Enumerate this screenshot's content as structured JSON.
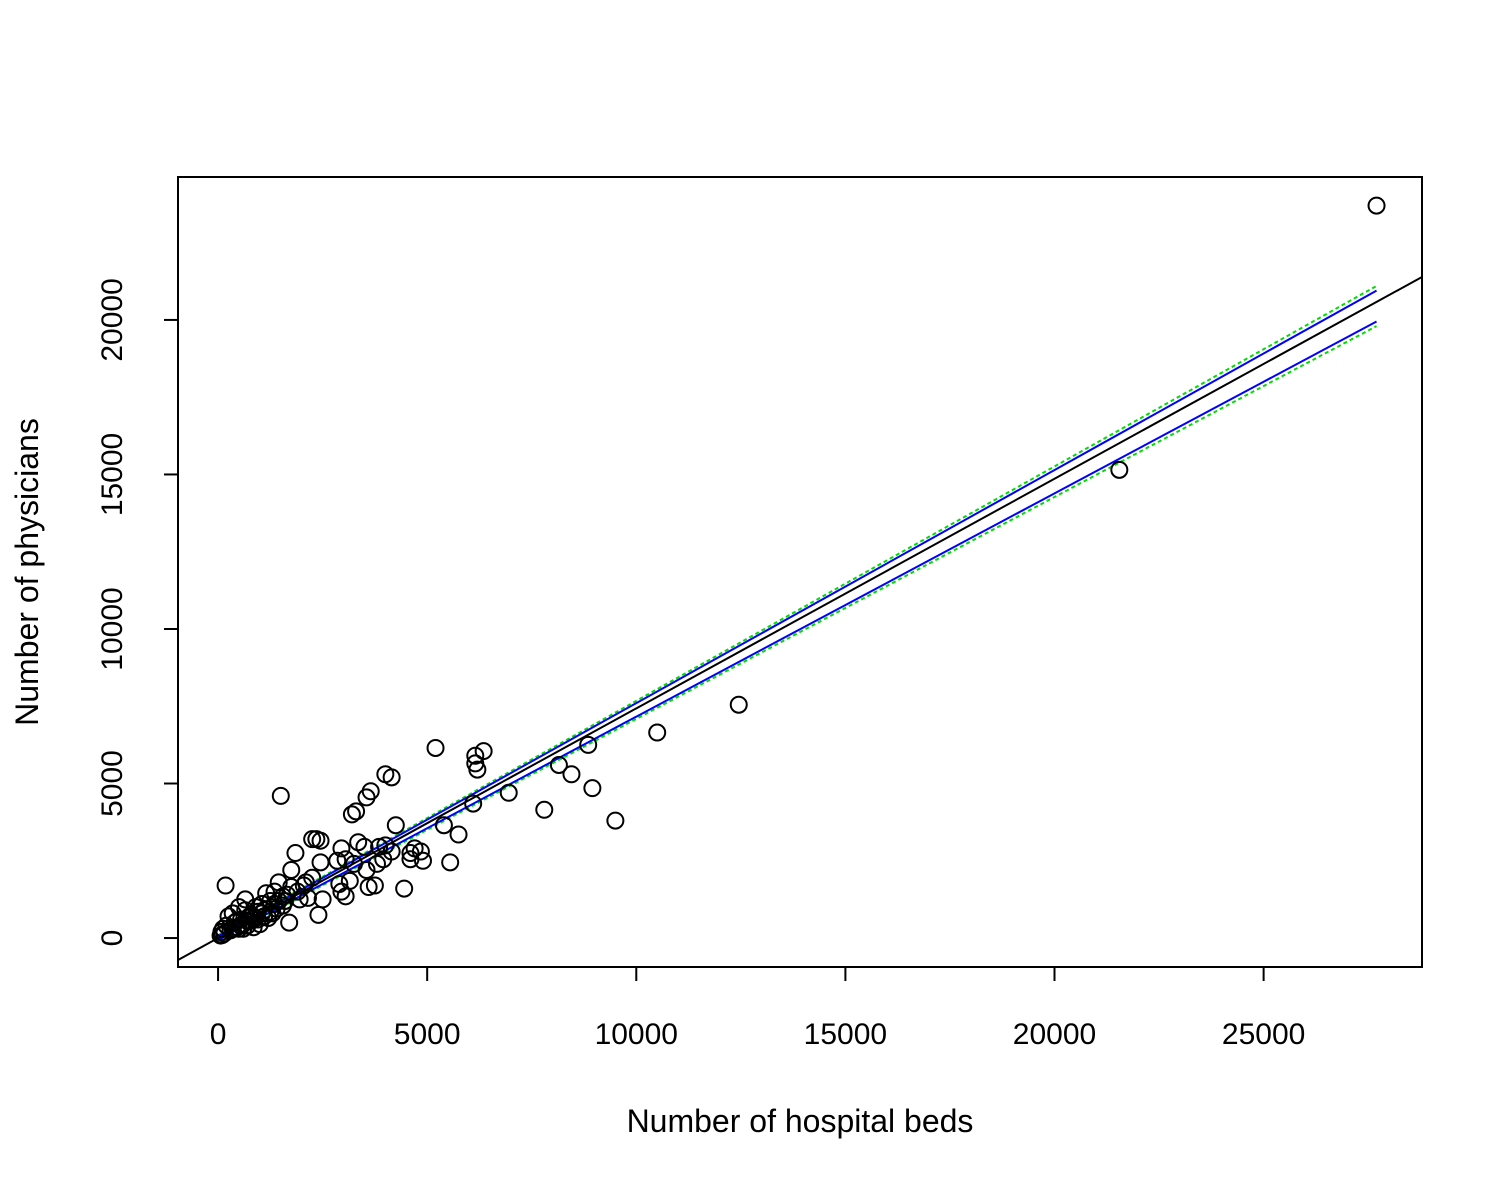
{
  "chart_data": {
    "type": "scatter",
    "title": "",
    "xlabel": "Number of hospital beds",
    "ylabel": "Number of physicians",
    "xlim": [
      -958,
      28787
    ],
    "ylim": [
      -937,
      24625
    ],
    "xticks": [
      0,
      5000,
      10000,
      15000,
      20000,
      25000
    ],
    "yticks": [
      0,
      5000,
      10000,
      15000,
      20000
    ],
    "xtick_labels": [
      "0",
      "5000",
      "10000",
      "15000",
      "20000",
      "25000"
    ],
    "ytick_labels": [
      "0",
      "5000",
      "10000",
      "15000",
      "20000"
    ],
    "grid": false,
    "legend": "none",
    "colors": {
      "points": "#000000",
      "fit": "#000000",
      "confidence": "#0000ff",
      "prediction": "#00dd00"
    },
    "points": [
      [
        27700,
        23700
      ],
      [
        21550,
        15150
      ],
      [
        12450,
        7550
      ],
      [
        10500,
        6650
      ],
      [
        9500,
        3800
      ],
      [
        8950,
        4850
      ],
      [
        8850,
        6250
      ],
      [
        8450,
        5300
      ],
      [
        8150,
        5600
      ],
      [
        7800,
        4150
      ],
      [
        6950,
        4700
      ],
      [
        6350,
        6050
      ],
      [
        6200,
        5450
      ],
      [
        6150,
        5900
      ],
      [
        6150,
        5650
      ],
      [
        6100,
        4350
      ],
      [
        5750,
        3350
      ],
      [
        5550,
        2450
      ],
      [
        5400,
        3650
      ],
      [
        5200,
        6150
      ],
      [
        4900,
        2500
      ],
      [
        4850,
        2800
      ],
      [
        4700,
        2900
      ],
      [
        4600,
        2550
      ],
      [
        4600,
        2750
      ],
      [
        4450,
        1600
      ],
      [
        4250,
        3650
      ],
      [
        4150,
        2800
      ],
      [
        4150,
        5200
      ],
      [
        4000,
        5300
      ],
      [
        4000,
        3000
      ],
      [
        3950,
        2550
      ],
      [
        3850,
        2950
      ],
      [
        3800,
        2400
      ],
      [
        3750,
        1700
      ],
      [
        3650,
        4750
      ],
      [
        3600,
        1650
      ],
      [
        3550,
        4550
      ],
      [
        3550,
        2200
      ],
      [
        3500,
        2950
      ],
      [
        3350,
        3100
      ],
      [
        3300,
        4100
      ],
      [
        3250,
        2400
      ],
      [
        3200,
        4000
      ],
      [
        3150,
        1850
      ],
      [
        3050,
        1350
      ],
      [
        3050,
        2550
      ],
      [
        2950,
        2900
      ],
      [
        2950,
        1500
      ],
      [
        2900,
        1750
      ],
      [
        2850,
        2500
      ],
      [
        2500,
        1250
      ],
      [
        2450,
        3150
      ],
      [
        2450,
        2450
      ],
      [
        2400,
        750
      ],
      [
        2350,
        3200
      ],
      [
        2250,
        1950
      ],
      [
        2250,
        3200
      ],
      [
        2150,
        1300
      ],
      [
        2050,
        1700
      ],
      [
        1950,
        1250
      ],
      [
        1850,
        2750
      ],
      [
        1750,
        1650
      ],
      [
        1750,
        2200
      ],
      [
        1700,
        500
      ],
      [
        1550,
        1350
      ],
      [
        1500,
        4600
      ],
      [
        1450,
        1800
      ],
      [
        1400,
        950
      ],
      [
        1350,
        1500
      ],
      [
        1300,
        800
      ],
      [
        1250,
        1200
      ],
      [
        1200,
        650
      ],
      [
        1150,
        1450
      ],
      [
        1100,
        700
      ],
      [
        1050,
        1100
      ],
      [
        1000,
        450
      ],
      [
        950,
        850
      ],
      [
        900,
        1000
      ],
      [
        850,
        350
      ],
      [
        800,
        750
      ],
      [
        750,
        550
      ],
      [
        700,
        400
      ],
      [
        650,
        900
      ],
      [
        650,
        1250
      ],
      [
        600,
        300
      ],
      [
        550,
        600
      ],
      [
        500,
        1000
      ],
      [
        450,
        350
      ],
      [
        400,
        500
      ],
      [
        350,
        800
      ],
      [
        300,
        250
      ],
      [
        250,
        700
      ],
      [
        200,
        400
      ],
      [
        180,
        1700
      ],
      [
        150,
        150
      ],
      [
        120,
        300
      ],
      [
        100,
        100
      ],
      [
        80,
        200
      ],
      [
        60,
        80
      ],
      [
        1100,
        900
      ],
      [
        1350,
        1100
      ],
      [
        1600,
        1200
      ],
      [
        1900,
        1500
      ],
      [
        2100,
        1800
      ],
      [
        900,
        650
      ],
      [
        750,
        700
      ],
      [
        550,
        400
      ],
      [
        450,
        550
      ],
      [
        350,
        300
      ],
      [
        1250,
        850
      ],
      [
        1550,
        1050
      ],
      [
        1650,
        1400
      ],
      [
        1450,
        1200
      ],
      [
        1050,
        800
      ],
      [
        950,
        600
      ],
      [
        850,
        650
      ],
      [
        700,
        550
      ],
      [
        600,
        450
      ],
      [
        500,
        300
      ]
    ],
    "fit_line": {
      "intercept": 1.0,
      "slope": 0.743
    },
    "confidence_band": {
      "x": [
        0,
        27700
      ],
      "lower": [
        -60,
        19950
      ],
      "upper": [
        60,
        20950
      ]
    },
    "prediction_band": {
      "x": [
        0,
        27700
      ],
      "lower": [
        -90,
        19800
      ],
      "upper": [
        90,
        21100
      ]
    }
  }
}
